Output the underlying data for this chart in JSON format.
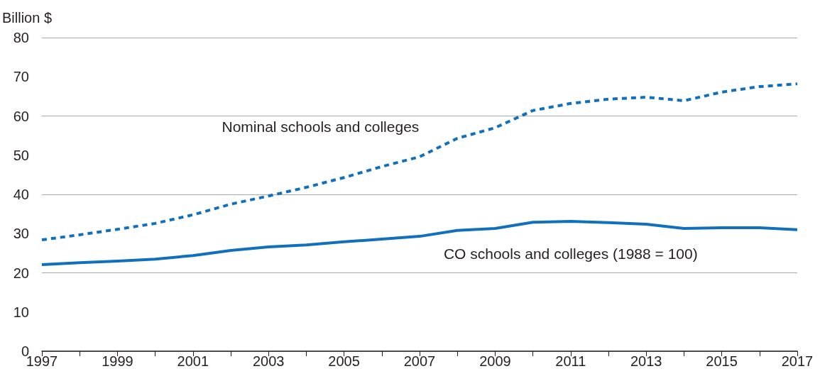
{
  "chart_data": {
    "type": "line",
    "ylabel": "Billion $",
    "x": [
      1997,
      1998,
      1999,
      2000,
      2001,
      2002,
      2003,
      2004,
      2005,
      2006,
      2007,
      2008,
      2009,
      2010,
      2011,
      2012,
      2013,
      2014,
      2015,
      2016,
      2017
    ],
    "series": [
      {
        "name": "Nominal schools and colleges",
        "color": "#1170bd",
        "line_style": "dashed",
        "values": [
          28.4,
          29.7,
          31.1,
          32.6,
          34.8,
          37.5,
          39.6,
          41.8,
          44.3,
          47.1,
          49.6,
          54.3,
          57.0,
          61.4,
          63.2,
          64.3,
          64.8,
          63.9,
          66.1,
          67.5,
          68.2
        ]
      },
      {
        "name": "CO schools and colleges (1988 = 100)",
        "color": "#1170bd",
        "line_style": "solid",
        "values": [
          22.1,
          22.6,
          23.0,
          23.5,
          24.4,
          25.7,
          26.6,
          27.1,
          27.9,
          28.6,
          29.3,
          30.8,
          31.3,
          32.9,
          33.1,
          32.8,
          32.4,
          31.3,
          31.5,
          31.5,
          31.0
        ]
      }
    ],
    "xlim": [
      1997,
      2017
    ],
    "xticks": [
      1997,
      {
        "value": 1998,
        "label": null
      },
      1999,
      {
        "value": 2000,
        "label": null
      },
      2001,
      {
        "value": 2002,
        "label": null
      },
      2003,
      {
        "value": 2004,
        "label": null
      },
      2005,
      {
        "value": 2006,
        "label": null
      },
      2007,
      {
        "value": 2008,
        "label": null
      },
      2009,
      {
        "value": 2010,
        "label": null
      },
      2011,
      {
        "value": 2012,
        "label": null
      },
      2013,
      {
        "value": 2014,
        "label": null
      },
      2015,
      {
        "value": 2016,
        "label": null
      },
      2017
    ],
    "ylim": [
      0,
      80
    ],
    "yticks": [
      0,
      10,
      20,
      30,
      40,
      50,
      60,
      70,
      80
    ],
    "grid": "y",
    "legend": false
  }
}
